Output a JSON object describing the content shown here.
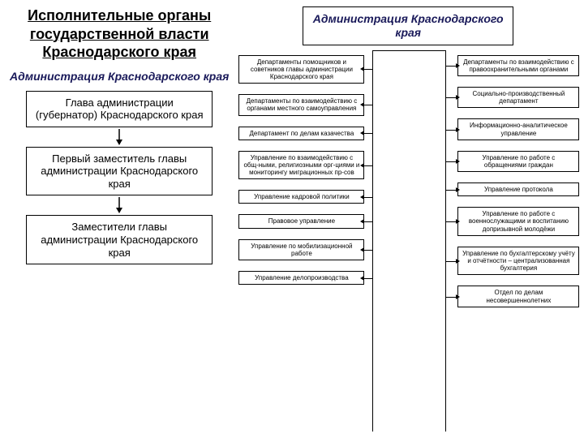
{
  "colors": {
    "text": "#000000",
    "accent": "#1a1a5a",
    "border": "#000000",
    "bg": "#ffffff"
  },
  "font": {
    "family": "Arial",
    "title_pt": 18,
    "subtitle_pt": 14,
    "box_pt": 13,
    "sbox_pt": 8
  },
  "left": {
    "title": "Исполнительные органы государственной власти Краснодарского края",
    "subtitle": "Администрация Краснодарского края",
    "chain": [
      "Глава администрации (губернатор) Краснодарского края",
      "Первый заместитель главы администрации Краснодарского края",
      "Заместители главы администрации Краснодарского края"
    ]
  },
  "right": {
    "title": "Администрация Краснодарского края",
    "left_col": [
      "Департаменты помощников и советников главы администрации Краснодарского края",
      "Департаменты по взаимодействию с органами местного самоуправления",
      "Департамент по делам казачества",
      "Управление по взаимодействию с общ-ными, религиозными орг-циями и мониторингу миграционных пр-сов",
      "Управление кадровой политики",
      "Правовое управление",
      "Управление по мобилизационной работе",
      "Управление делопроизводства"
    ],
    "right_col": [
      "Департаменты по взаимодействию с правоохранительными органами",
      "Социально-производственный департамент",
      "Информационно-аналитическое управление",
      "Управление по работе с обращениями граждан",
      "Управление протокола",
      "Управление по работе с военнослужащими и воспитанию допризывной молодёжи",
      "Управление по бухгалтерскому учёту и отчётности – централизованная бухгалтерия",
      "Отдел по делам несовершеннолетних"
    ]
  }
}
